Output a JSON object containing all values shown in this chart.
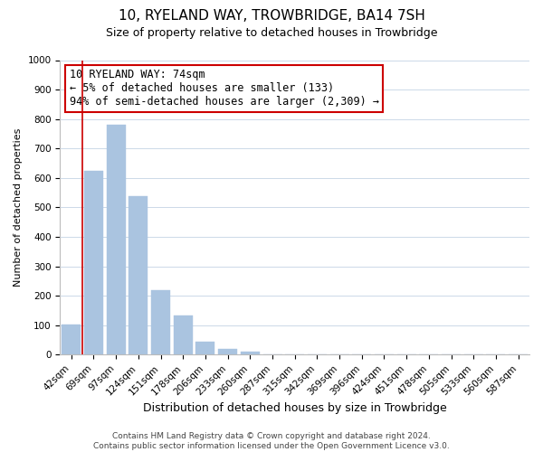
{
  "title": "10, RYELAND WAY, TROWBRIDGE, BA14 7SH",
  "subtitle": "Size of property relative to detached houses in Trowbridge",
  "xlabel": "Distribution of detached houses by size in Trowbridge",
  "ylabel": "Number of detached properties",
  "footer_line1": "Contains HM Land Registry data © Crown copyright and database right 2024.",
  "footer_line2": "Contains public sector information licensed under the Open Government Licence v3.0.",
  "bar_labels": [
    "42sqm",
    "69sqm",
    "97sqm",
    "124sqm",
    "151sqm",
    "178sqm",
    "206sqm",
    "233sqm",
    "260sqm",
    "287sqm",
    "315sqm",
    "342sqm",
    "369sqm",
    "396sqm",
    "424sqm",
    "451sqm",
    "478sqm",
    "505sqm",
    "533sqm",
    "560sqm",
    "587sqm"
  ],
  "bar_heights": [
    103,
    625,
    780,
    538,
    220,
    133,
    45,
    20,
    10,
    0,
    0,
    0,
    0,
    0,
    0,
    0,
    0,
    0,
    0,
    0,
    0
  ],
  "bar_color": "#aac4e0",
  "bar_edge_color": "#aac4e0",
  "ylim": [
    0,
    1000
  ],
  "yticks": [
    0,
    100,
    200,
    300,
    400,
    500,
    600,
    700,
    800,
    900,
    1000
  ],
  "annotation_title": "10 RYELAND WAY: 74sqm",
  "annotation_line1": "← 5% of detached houses are smaller (133)",
  "annotation_line2": "94% of semi-detached houses are larger (2,309) →",
  "annotation_box_color": "#ffffff",
  "annotation_box_edge_color": "#cc0000",
  "vline_color": "#cc0000",
  "vline_x": 0.5,
  "background_color": "#ffffff",
  "grid_color": "#ccd9e8",
  "title_fontsize": 11,
  "subtitle_fontsize": 9,
  "ylabel_fontsize": 8,
  "xlabel_fontsize": 9,
  "annotation_fontsize": 8.5,
  "tick_labelsize": 7.5,
  "footer_fontsize": 6.5
}
